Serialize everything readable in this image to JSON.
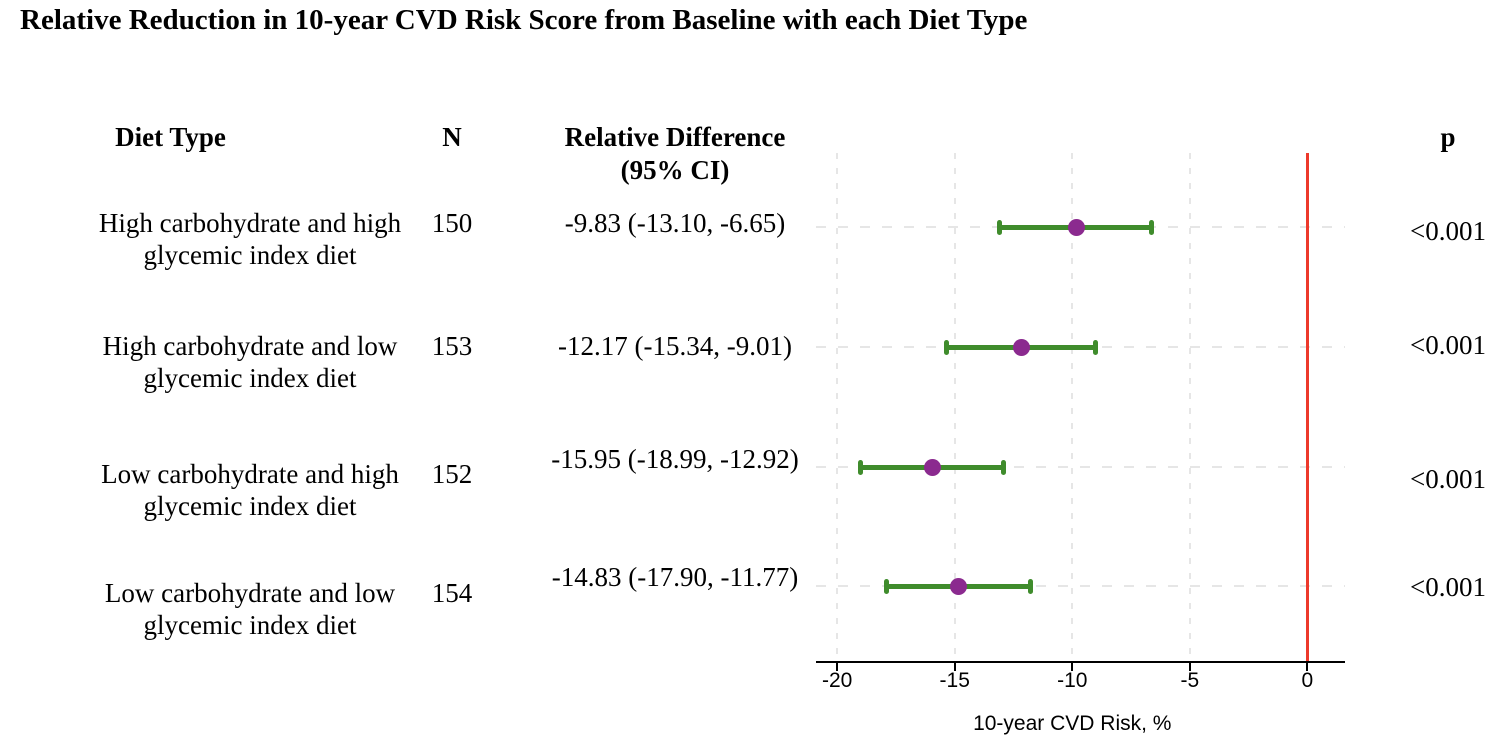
{
  "title": "Relative Reduction in 10-year CVD Risk Score from Baseline with each Diet Type",
  "columns": {
    "diet_type": "Diet Type",
    "n": "N",
    "rel_diff_line1": "Relative Difference",
    "rel_diff_line2": "(95% CI)",
    "p": "p"
  },
  "rows": [
    {
      "label_1": "High carbohydrate and high",
      "label_2": "glycemic index diet",
      "n": "150",
      "ci": "-9.83 (-13.10, -6.65)",
      "p": "<0.001"
    },
    {
      "label_1": "High carbohydrate and low",
      "label_2": "glycemic index diet",
      "n": "153",
      "ci": "-12.17 (-15.34, -9.01)",
      "p": "<0.001"
    },
    {
      "label_1": "Low carbohydrate and high",
      "label_2": "glycemic index diet",
      "n": "152",
      "ci": "-15.95 (-18.99, -12.92)",
      "p": "<0.001"
    },
    {
      "label_1": "Low carbohydrate and low",
      "label_2": "glycemic index diet",
      "n": "154",
      "ci": "-14.83 (-17.90, -11.77)",
      "p": "<0.001"
    }
  ],
  "chart_data": {
    "type": "scatter",
    "subtype": "forest_plot",
    "title": "Relative Reduction in 10-year CVD Risk Score from Baseline with each Diet Type",
    "xlabel": "10-year CVD Risk, %",
    "xlim": [
      -20.9,
      1.6
    ],
    "x_ticks": [
      -20,
      -15,
      -10,
      -5,
      0
    ],
    "reference_line_x": 0,
    "grid": "dashed vertical at x ticks and dashed horizontal at each row",
    "legend": "none",
    "points": [
      {
        "label": "High carbohydrate and high glycemic index diet",
        "n": 150,
        "estimate": -9.83,
        "ci_low": -13.1,
        "ci_high": -6.65,
        "p": "<0.001"
      },
      {
        "label": "High carbohydrate and low glycemic index diet",
        "n": 153,
        "estimate": -12.17,
        "ci_low": -15.34,
        "ci_high": -9.01,
        "p": "<0.001"
      },
      {
        "label": "Low carbohydrate and high glycemic index diet",
        "n": 152,
        "estimate": -15.95,
        "ci_low": -18.99,
        "ci_high": -12.92,
        "p": "<0.001"
      },
      {
        "label": "Low carbohydrate and low glycemic index diet",
        "n": 154,
        "estimate": -14.83,
        "ci_low": -17.9,
        "ci_high": -11.77,
        "p": "<0.001"
      }
    ]
  },
  "colors": {
    "ci_bar": "#3f8c2c",
    "point": "#8b2a8f",
    "reference_line": "#ed392b",
    "gridline": "#e6e6e6",
    "axis": "#000000",
    "text": "#000000",
    "background": "#ffffff"
  }
}
